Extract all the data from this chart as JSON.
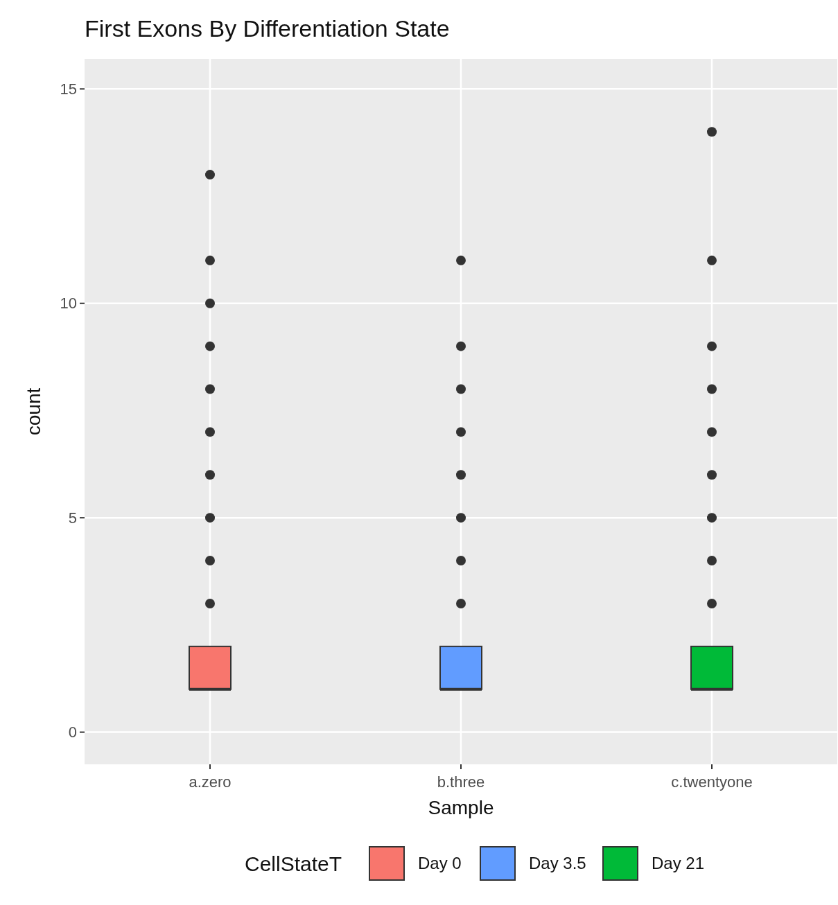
{
  "chart_data": {
    "type": "box",
    "title": "First Exons By Differentiation State",
    "xlabel": "Sample",
    "ylabel": "count",
    "legend_title": "CellStateT",
    "categories": [
      "a.zero",
      "b.three",
      "c.twentyone"
    ],
    "series": [
      {
        "name": "Day 0",
        "color": "#f8766d",
        "boxes": [
          {
            "low": 1,
            "q1": 1,
            "median": 1,
            "q3": 2,
            "high": 2,
            "outliers": [
              3,
              4,
              5,
              6,
              7,
              8,
              9,
              10,
              11,
              13
            ]
          },
          null,
          null
        ]
      },
      {
        "name": "Day 3.5",
        "color": "#619cff",
        "boxes": [
          null,
          {
            "low": 1,
            "q1": 1,
            "median": 1,
            "q3": 2,
            "high": 2,
            "outliers": [
              3,
              4,
              5,
              6,
              7,
              8,
              9,
              11
            ]
          },
          null
        ]
      },
      {
        "name": "Day 21",
        "color": "#00ba38",
        "boxes": [
          null,
          null,
          {
            "low": 1,
            "q1": 1,
            "median": 1,
            "q3": 2,
            "high": 2,
            "outliers": [
              3,
              4,
              5,
              6,
              7,
              8,
              9,
              11,
              14
            ]
          }
        ]
      }
    ],
    "ylim": [
      -0.75,
      15.7
    ],
    "yticks": [
      0,
      5,
      10,
      15
    ],
    "grid": true,
    "legend": "bottom"
  }
}
